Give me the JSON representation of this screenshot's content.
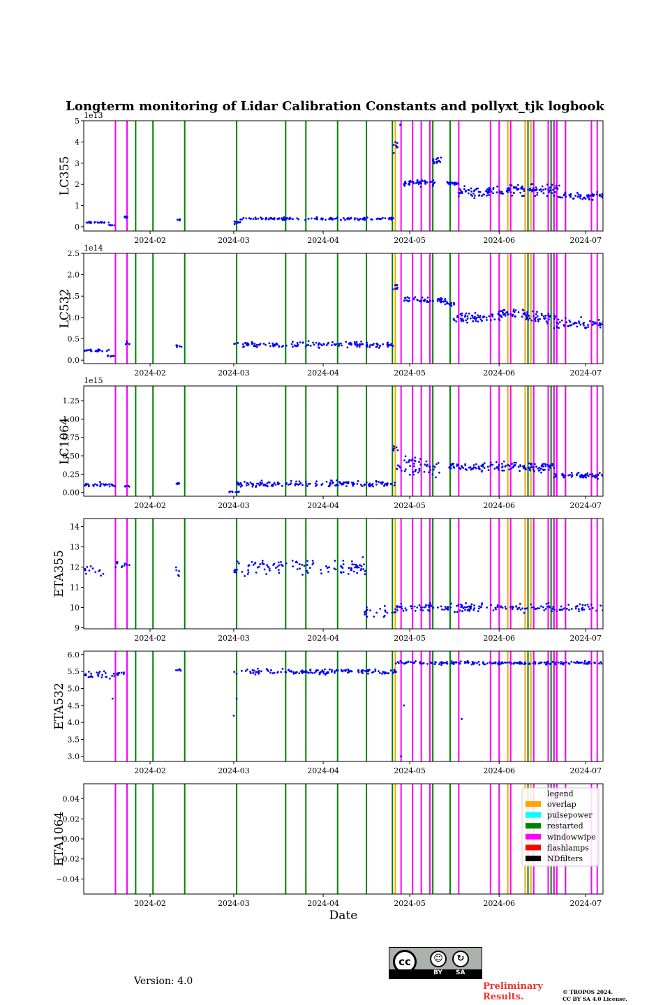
{
  "figure": {
    "title": "Longterm monitoring of Lidar Calibration Constants and pollyxt_tjk logbook",
    "version": "Version: 4.0",
    "preliminary": [
      "Preliminary",
      "Results."
    ],
    "copyright": [
      "© TROPOS 2024.",
      "CC BY SA 4.0 License."
    ],
    "license_badge": {
      "main": "cc",
      "by": "BY",
      "sa": "SA"
    }
  },
  "chart_data": {
    "type": "scatter",
    "xlabel": "Date",
    "xlim": [
      "2024-01-09",
      "2024-07-07"
    ],
    "x_ticks": [
      "2024-02-01",
      "2024-03-01",
      "2024-04-01",
      "2024-05-01",
      "2024-06-01",
      "2024-07-01"
    ],
    "x_tick_labels": [
      "2024-02",
      "2024-03",
      "2024-04",
      "2024-05",
      "2024-06",
      "2024-07"
    ],
    "logbook_events": {
      "windowwipe": [
        "2024-01-20",
        "2024-01-20",
        "2024-01-24",
        "2024-04-28",
        "2024-05-02",
        "2024-05-05",
        "2024-05-08",
        "2024-05-18",
        "2024-05-29",
        "2024-06-01",
        "2024-06-05",
        "2024-06-13",
        "2024-06-18",
        "2024-06-20",
        "2024-06-21",
        "2024-06-24",
        "2024-07-03",
        "2024-07-05"
      ],
      "overlap": [
        "2024-04-26",
        "2024-06-04",
        "2024-06-10",
        "2024-06-12"
      ],
      "restarted": [
        "2024-01-27",
        "2024-02-02",
        "2024-02-13",
        "2024-03-02",
        "2024-03-19",
        "2024-03-26",
        "2024-04-06",
        "2024-04-16",
        "2024-04-25",
        "2024-05-09",
        "2024-05-15",
        "2024-06-11",
        "2024-06-19",
        "2024-06-20",
        "2024-06-24"
      ]
    },
    "event_colors": {
      "overlap": "#ffa500",
      "pulsepower": "#00ffff",
      "restarted": "#008000",
      "windowwipe": "#ff00ff",
      "flashlamps": "#ff0000",
      "NDfilters": "#000000"
    },
    "legend": {
      "title": "legend",
      "placement": "upper right of last panel",
      "entries": [
        "overlap",
        "pulsepower",
        "restarted",
        "windowwipe",
        "flashlamps",
        "NDfilters"
      ]
    },
    "marker_color": "#0000ff",
    "panels": [
      {
        "ylabel": "LC355",
        "offset_label": "1e13",
        "ylim": [
          -0.2,
          5.0
        ],
        "y_ticks": [
          0,
          1,
          2,
          3,
          4,
          5
        ],
        "y_tick_labels": [
          "0",
          "1",
          "2",
          "3",
          "4",
          "5"
        ],
        "segments": [
          {
            "from": "2024-01-09",
            "to": "2024-01-17",
            "mean": 0.2,
            "spread": 0.05,
            "n": 18
          },
          {
            "from": "2024-01-17",
            "to": "2024-01-19",
            "mean": 0.07,
            "spread": 0.03,
            "n": 6
          },
          {
            "from": "2024-01-23",
            "to": "2024-01-24",
            "mean": 0.45,
            "spread": 0.1,
            "n": 5
          },
          {
            "from": "2024-02-10",
            "to": "2024-02-11",
            "mean": 0.32,
            "spread": 0.05,
            "n": 5
          },
          {
            "from": "2024-03-01",
            "to": "2024-03-03",
            "mean": 0.2,
            "spread": 0.1,
            "n": 10
          },
          {
            "from": "2024-03-03",
            "to": "2024-04-25",
            "mean": 0.38,
            "spread": 0.09,
            "n": 120
          },
          {
            "from": "2024-04-25",
            "to": "2024-04-26",
            "mean": 3.8,
            "spread": 0.4,
            "n": 8
          },
          {
            "from": "2024-04-27",
            "to": "2024-04-27",
            "mean": 4.8,
            "spread": 0.02,
            "n": 2
          },
          {
            "from": "2024-04-29",
            "to": "2024-05-09",
            "mean": 2.1,
            "spread": 0.25,
            "n": 45
          },
          {
            "from": "2024-05-09",
            "to": "2024-05-11",
            "mean": 3.1,
            "spread": 0.25,
            "n": 15
          },
          {
            "from": "2024-05-14",
            "to": "2024-05-17",
            "mean": 2.05,
            "spread": 0.12,
            "n": 20
          },
          {
            "from": "2024-05-17",
            "to": "2024-05-28",
            "mean": 1.65,
            "spread": 0.35,
            "n": 45
          },
          {
            "from": "2024-05-28",
            "to": "2024-06-07",
            "mean": 1.75,
            "spread": 0.35,
            "n": 40
          },
          {
            "from": "2024-06-07",
            "to": "2024-06-21",
            "mean": 1.75,
            "spread": 0.4,
            "n": 55
          },
          {
            "from": "2024-06-21",
            "to": "2024-07-07",
            "mean": 1.45,
            "spread": 0.25,
            "n": 55
          }
        ]
      },
      {
        "ylabel": "LC532",
        "offset_label": "1e14",
        "ylim": [
          -0.08,
          2.5
        ],
        "y_ticks": [
          0,
          0.5,
          1.0,
          1.5,
          2.0,
          2.5
        ],
        "y_tick_labels": [
          "0.0",
          "0.5",
          "1.0",
          "1.5",
          "2.0",
          "2.5"
        ],
        "segments": [
          {
            "from": "2024-01-09",
            "to": "2024-01-17",
            "mean": 0.22,
            "spread": 0.04,
            "n": 22
          },
          {
            "from": "2024-01-17",
            "to": "2024-01-19",
            "mean": 0.1,
            "spread": 0.03,
            "n": 6
          },
          {
            "from": "2024-01-23",
            "to": "2024-01-24",
            "mean": 0.4,
            "spread": 0.06,
            "n": 5
          },
          {
            "from": "2024-02-10",
            "to": "2024-02-11",
            "mean": 0.33,
            "spread": 0.06,
            "n": 6
          },
          {
            "from": "2024-03-01",
            "to": "2024-04-25",
            "mean": 0.36,
            "spread": 0.1,
            "n": 140
          },
          {
            "from": "2024-04-25",
            "to": "2024-04-26",
            "mean": 1.7,
            "spread": 0.15,
            "n": 8
          },
          {
            "from": "2024-04-29",
            "to": "2024-05-13",
            "mean": 1.4,
            "spread": 0.1,
            "n": 50
          },
          {
            "from": "2024-05-13",
            "to": "2024-05-16",
            "mean": 1.3,
            "spread": 0.08,
            "n": 15
          },
          {
            "from": "2024-05-16",
            "to": "2024-06-01",
            "mean": 1.0,
            "spread": 0.2,
            "n": 60
          },
          {
            "from": "2024-06-01",
            "to": "2024-06-10",
            "mean": 1.1,
            "spread": 0.15,
            "n": 35
          },
          {
            "from": "2024-06-10",
            "to": "2024-06-20",
            "mean": 1.0,
            "spread": 0.2,
            "n": 40
          },
          {
            "from": "2024-06-20",
            "to": "2024-07-07",
            "mean": 0.85,
            "spread": 0.18,
            "n": 55
          }
        ]
      },
      {
        "ylabel": "LC1064",
        "offset_label": "1e15",
        "ylim": [
          -0.05,
          1.45
        ],
        "y_ticks": [
          0,
          0.25,
          0.5,
          0.75,
          1.0,
          1.25
        ],
        "y_tick_labels": [
          "0.00",
          "0.25",
          "0.50",
          "0.75",
          "1.00",
          "1.25"
        ],
        "segments": [
          {
            "from": "2024-01-09",
            "to": "2024-01-19",
            "mean": 0.1,
            "spread": 0.05,
            "n": 30
          },
          {
            "from": "2024-01-23",
            "to": "2024-01-24",
            "mean": 0.09,
            "spread": 0.02,
            "n": 5
          },
          {
            "from": "2024-02-10",
            "to": "2024-02-11",
            "mean": 0.12,
            "spread": 0.02,
            "n": 6
          },
          {
            "from": "2024-02-28",
            "to": "2024-03-02",
            "mean": 0.01,
            "spread": 0.01,
            "n": 8
          },
          {
            "from": "2024-03-02",
            "to": "2024-04-25",
            "mean": 0.12,
            "spread": 0.06,
            "n": 150
          },
          {
            "from": "2024-04-25",
            "to": "2024-04-26",
            "mean": 0.6,
            "spread": 0.1,
            "n": 6
          },
          {
            "from": "2024-04-26",
            "to": "2024-05-11",
            "mean": 0.35,
            "spread": 0.2,
            "n": 50
          },
          {
            "from": "2024-05-14",
            "to": "2024-06-20",
            "mean": 0.35,
            "spread": 0.1,
            "n": 140
          },
          {
            "from": "2024-06-20",
            "to": "2024-07-07",
            "mean": 0.23,
            "spread": 0.05,
            "n": 60
          }
        ]
      },
      {
        "ylabel": "ETA355",
        "offset_label": "",
        "ylim": [
          8.95,
          14.4
        ],
        "y_ticks": [
          9,
          10,
          11,
          12,
          13,
          14
        ],
        "y_tick_labels": [
          "9",
          "10",
          "11",
          "12",
          "13",
          "14"
        ],
        "segments": [
          {
            "from": "2024-01-09",
            "to": "2024-01-15",
            "mean": 11.8,
            "spread": 0.7,
            "n": 12
          },
          {
            "from": "2024-01-20",
            "to": "2024-01-24",
            "mean": 12.1,
            "spread": 0.3,
            "n": 10
          },
          {
            "from": "2024-02-10",
            "to": "2024-02-11",
            "mean": 11.8,
            "spread": 0.5,
            "n": 5
          },
          {
            "from": "2024-03-01",
            "to": "2024-04-15",
            "mean": 12.0,
            "spread": 0.6,
            "n": 110
          },
          {
            "from": "2024-04-15",
            "to": "2024-04-26",
            "mean": 9.8,
            "spread": 0.35,
            "n": 20
          },
          {
            "from": "2024-04-26",
            "to": "2024-07-07",
            "mean": 10.0,
            "spread": 0.3,
            "n": 170
          }
        ]
      },
      {
        "ylabel": "ETA532",
        "offset_label": "",
        "ylim": [
          2.85,
          6.1
        ],
        "y_ticks": [
          3.0,
          3.5,
          4.0,
          4.5,
          5.0,
          5.5,
          6.0
        ],
        "y_tick_labels": [
          "3.0",
          "3.5",
          "4.0",
          "4.5",
          "5.0",
          "5.5",
          "6.0"
        ],
        "segments": [
          {
            "from": "2024-01-09",
            "to": "2024-01-19",
            "mean": 5.4,
            "spread": 0.15,
            "n": 25
          },
          {
            "from": "2024-01-20",
            "to": "2024-01-24",
            "mean": 5.45,
            "spread": 0.1,
            "n": 8
          },
          {
            "from": "2024-02-10",
            "to": "2024-02-11",
            "mean": 5.55,
            "spread": 0.05,
            "n": 5
          },
          {
            "from": "2024-03-01",
            "to": "2024-04-26",
            "mean": 5.5,
            "spread": 0.12,
            "n": 140
          },
          {
            "from": "2024-04-26",
            "to": "2024-07-07",
            "mean": 5.75,
            "spread": 0.07,
            "n": 190
          }
        ],
        "outliers": [
          [
            "2024-01-19",
            4.7
          ],
          [
            "2024-03-01",
            4.2
          ],
          [
            "2024-03-02",
            4.7
          ],
          [
            "2024-04-28",
            3.0
          ],
          [
            "2024-04-29",
            4.5
          ],
          [
            "2024-05-19",
            4.1
          ]
        ]
      },
      {
        "ylabel": "ETA1064",
        "offset_label": "",
        "ylim": [
          -0.055,
          0.055
        ],
        "y_ticks": [
          -0.04,
          -0.02,
          0.0,
          0.02,
          0.04
        ],
        "y_tick_labels": [
          "−0.04",
          "−0.02",
          "0.00",
          "0.02",
          "0.04"
        ],
        "segments": []
      }
    ]
  }
}
